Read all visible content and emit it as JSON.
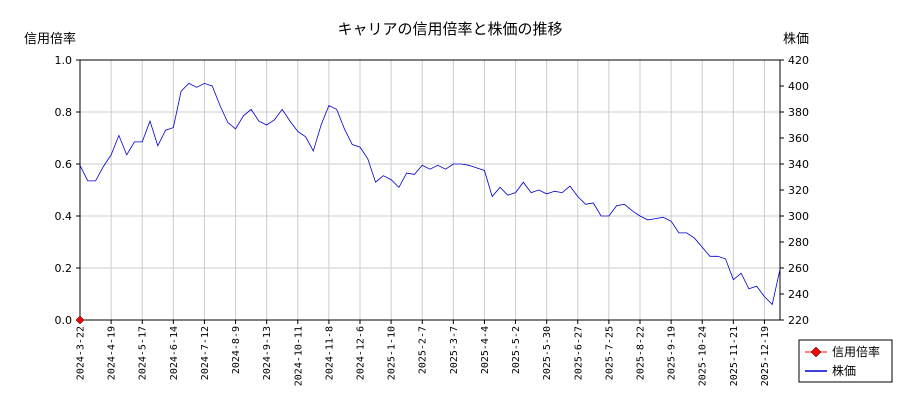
{
  "chart_data": {
    "type": "line",
    "title": "キャリアの信用倍率と株価の推移",
    "left_axis_label": "信用倍率",
    "right_axis_label": "株価",
    "left_ylim": [
      0,
      1.0
    ],
    "right_ylim": [
      220,
      420
    ],
    "left_ticks": [
      "0.0",
      "0.2",
      "0.4",
      "0.6",
      "0.8",
      "1.0"
    ],
    "right_ticks": [
      "220",
      "240",
      "260",
      "280",
      "300",
      "320",
      "340",
      "360",
      "380",
      "400",
      "420"
    ],
    "x_tick_labels": [
      "2024-3-22",
      "2024-4-19",
      "2024-5-17",
      "2024-6-14",
      "2024-7-12",
      "2024-8-9",
      "2024-9-13",
      "2024-10-11",
      "2024-11-8",
      "2024-12-6",
      "2025-1-10",
      "2025-2-7",
      "2025-3-7",
      "2025-4-4",
      "2025-5-2",
      "2025-5-30",
      "2025-6-27",
      "2025-7-25",
      "2025-8-22",
      "2025-9-19",
      "2025-10-24",
      "2025-11-21",
      "2025-12-19"
    ],
    "grid": true,
    "legend_position": "bottom-right outside",
    "series": [
      {
        "name": "信用倍率",
        "axis": "left",
        "color": "#ff0000",
        "marker": "diamond",
        "points": [
          {
            "x": 0,
            "y": 0.0
          }
        ]
      },
      {
        "name": "株価",
        "axis": "right",
        "color": "#0000cc",
        "values": [
          339,
          327,
          327,
          338,
          347,
          362,
          347,
          357,
          357,
          373,
          354,
          366,
          368,
          396,
          402,
          399,
          402,
          400,
          385,
          372,
          367,
          377,
          382,
          373,
          370,
          374,
          382,
          373,
          365,
          361,
          350,
          370,
          385,
          382,
          367,
          355,
          353,
          344,
          326,
          331,
          328,
          322,
          333,
          332,
          339,
          336,
          339,
          336,
          340,
          340,
          339,
          337,
          335,
          315,
          322,
          316,
          318,
          326,
          318,
          320,
          317,
          319,
          318,
          323,
          315,
          309,
          310,
          300,
          300,
          308,
          309,
          304,
          300,
          297,
          298,
          299,
          296,
          287,
          287,
          283,
          276,
          269,
          269,
          267,
          251,
          256,
          244,
          246,
          238,
          232,
          259
        ]
      }
    ]
  }
}
